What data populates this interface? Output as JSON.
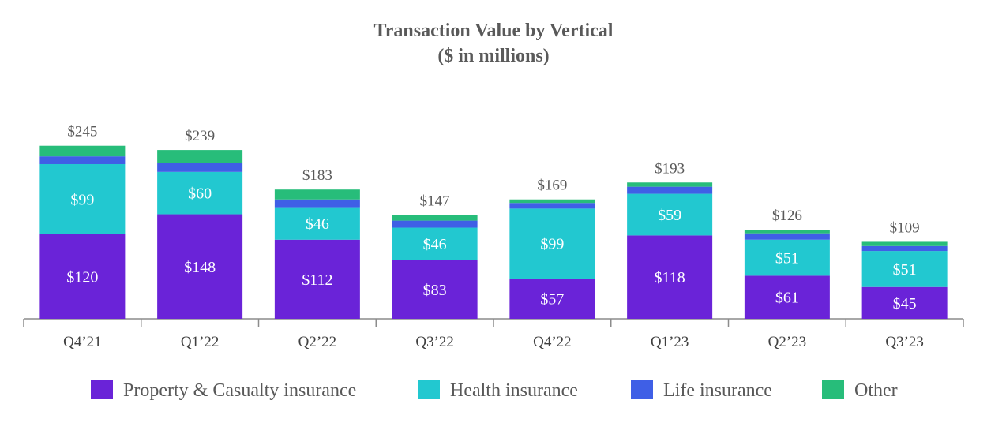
{
  "chart_data": {
    "type": "bar",
    "stacked": true,
    "title": "Transaction Value by Vertical",
    "subtitle": "($ in millions)",
    "categories": [
      "Q4’21",
      "Q1’22",
      "Q2’22",
      "Q3’22",
      "Q4’22",
      "Q1’23",
      "Q2’23",
      "Q3’23"
    ],
    "totals": [
      245,
      239,
      183,
      147,
      169,
      193,
      126,
      109
    ],
    "total_labels": [
      "$245",
      "$239",
      "$183",
      "$147",
      "$169",
      "$193",
      "$126",
      "$109"
    ],
    "series": [
      {
        "name": "Property & Casualty insurance",
        "color": "#6a23d8",
        "values": [
          120,
          148,
          112,
          83,
          57,
          118,
          61,
          45
        ],
        "labels": [
          "$120",
          "$148",
          "$112",
          "$83",
          "$57",
          "$118",
          "$61",
          "$45"
        ]
      },
      {
        "name": "Health insurance",
        "color": "#22c8d0",
        "values": [
          99,
          60,
          46,
          46,
          99,
          59,
          51,
          51
        ],
        "labels": [
          "$99",
          "$60",
          "$46",
          "$46",
          "$99",
          "$59",
          "$51",
          "$51"
        ]
      },
      {
        "name": "Life insurance",
        "color": "#3f5fe6",
        "values": [
          11,
          13,
          11,
          10,
          8,
          10,
          9,
          7
        ],
        "labels": []
      },
      {
        "name": "Other",
        "color": "#27bd7a",
        "values": [
          15,
          18,
          14,
          8,
          5,
          6,
          5,
          6
        ],
        "labels": []
      }
    ],
    "ylim": [
      0,
      250
    ],
    "grid": false,
    "legend": "bottom"
  }
}
